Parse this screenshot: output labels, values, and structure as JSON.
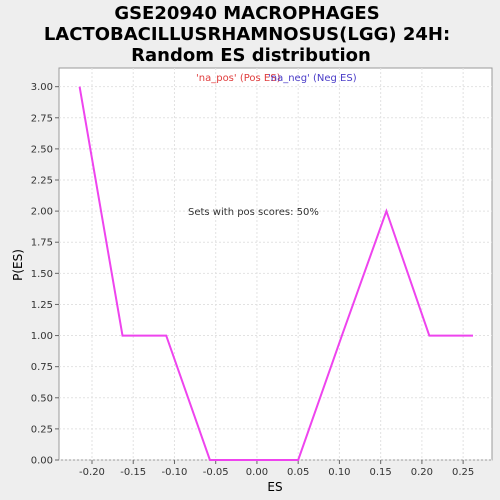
{
  "chart_data": {
    "type": "line",
    "title_lines": [
      "GSE20940 MACROPHAGES",
      "LACTOBACILLUSRHAMNOSUS(LGG) 24H:",
      "Random ES distribution"
    ],
    "xlabel": "ES",
    "ylabel": "P(ES)",
    "xlim": [
      -0.24,
      0.285
    ],
    "ylim": [
      0,
      3.15
    ],
    "x_ticks": [
      -0.2,
      -0.15,
      -0.1,
      -0.05,
      0.0,
      0.05,
      0.1,
      0.15,
      0.2,
      0.25
    ],
    "x_tick_labels": [
      "-0.20",
      "-0.15",
      "-0.10",
      "-0.05",
      "0.00",
      "0.05",
      "0.10",
      "0.15",
      "0.20",
      "0.25"
    ],
    "y_ticks": [
      0,
      0.25,
      0.5,
      0.75,
      1.0,
      1.25,
      1.5,
      1.75,
      2.0,
      2.25,
      2.5,
      2.75,
      3.0
    ],
    "y_tick_labels": [
      "0.00",
      "0.25",
      "0.50",
      "0.75",
      "1.00",
      "1.25",
      "1.50",
      "1.75",
      "2.00",
      "2.25",
      "2.50",
      "2.75",
      "3.00"
    ],
    "grid": true,
    "legend": [
      {
        "label": "'na_pos' (Pos ES)",
        "color": "#e03c3c"
      },
      {
        "label": "'na_neg' (Neg ES)",
        "color": "#4a3cc8"
      }
    ],
    "annotation": "Sets with pos scores: 50%",
    "series": [
      {
        "color": "#ee44ee",
        "x": [
          -0.215,
          -0.163,
          -0.11,
          -0.057,
          -0.05,
          0.05,
          0.103,
          0.157,
          0.209,
          0.262
        ],
        "y": [
          3.0,
          1.0,
          1.0,
          0.0,
          0.0,
          0.0,
          1.0,
          2.0,
          1.0,
          1.0
        ]
      }
    ]
  }
}
